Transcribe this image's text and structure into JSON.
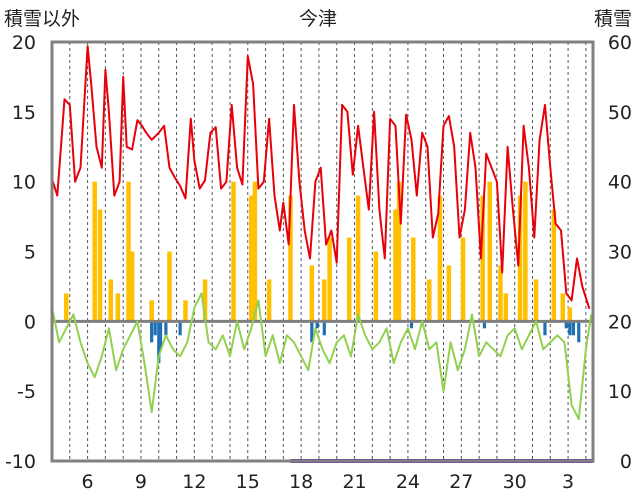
{
  "chart_data": {
    "type": "line",
    "title": "今津",
    "left_axis_label": "積雪以外",
    "right_axis_label": "積雪",
    "left_ylim": [
      -10,
      20
    ],
    "right_ylim": [
      0,
      60
    ],
    "left_ticks": [
      "20",
      "15",
      "10",
      "5",
      "0",
      "-5",
      "-10"
    ],
    "right_ticks": [
      "60",
      "50",
      "40",
      "30",
      "20",
      "10",
      "0"
    ],
    "x_tick_labels": [
      "6",
      "9",
      "12",
      "15",
      "18",
      "21",
      "24",
      "27",
      "30",
      "3"
    ],
    "grid": "vertical dashed daily lines",
    "x_range_days": [
      4,
      34.4
    ],
    "colors": {
      "max_temp": "#e8000b",
      "min_temp": "#92d050",
      "precip": "#ffc000",
      "negative_bars": "#1f6fb4",
      "snow_depth": "#7030a0",
      "zero_line": "#7f7f7f",
      "frame": "#808080"
    },
    "series": [
      {
        "key": "max_temp",
        "axis": "left",
        "x": [
          4.0,
          4.3,
          4.7,
          5.0,
          5.3,
          5.6,
          6.0,
          6.2,
          6.5,
          6.8,
          7.0,
          7.2,
          7.5,
          7.8,
          8.0,
          8.2,
          8.5,
          8.8,
          9.0,
          9.3,
          9.6,
          10.0,
          10.3,
          10.6,
          10.9,
          11.2,
          11.5,
          11.8,
          12.0,
          12.3,
          12.6,
          12.9,
          13.2,
          13.5,
          13.8,
          14.1,
          14.4,
          14.7,
          15.0,
          15.3,
          15.6,
          15.9,
          16.2,
          16.5,
          16.8,
          17.0,
          17.3,
          17.6,
          17.9,
          18.2,
          18.5,
          18.8,
          19.1,
          19.4,
          19.7,
          20.0,
          20.3,
          20.6,
          20.9,
          21.2,
          21.5,
          21.8,
          22.1,
          22.4,
          22.7,
          23.0,
          23.3,
          23.6,
          23.9,
          24.2,
          24.5,
          24.8,
          25.1,
          25.4,
          25.7,
          26.0,
          26.3,
          26.6,
          26.9,
          27.2,
          27.5,
          27.8,
          28.1,
          28.4,
          28.7,
          29.0,
          29.3,
          29.6,
          29.9,
          30.2,
          30.5,
          30.8,
          31.1,
          31.4,
          31.7,
          32.0,
          32.3,
          32.6,
          32.9,
          33.2,
          33.5,
          33.8,
          34.2
        ],
        "values": [
          10.2,
          9,
          15.9,
          15.5,
          10,
          11,
          19.7,
          17,
          12.5,
          11,
          18,
          15,
          9,
          10,
          17.5,
          12.5,
          12.3,
          14.4,
          14.1,
          13.5,
          13,
          13.5,
          14,
          11,
          10.3,
          9.7,
          8.8,
          14.5,
          11.5,
          9.5,
          10.1,
          13.5,
          13.9,
          9.5,
          10,
          15.5,
          11,
          9.8,
          19,
          17,
          9.5,
          10,
          14.5,
          9,
          6.5,
          8.5,
          5.5,
          15.5,
          10,
          6.5,
          4.5,
          10,
          11,
          5.5,
          6.5,
          4.2,
          15.5,
          15,
          10.5,
          14,
          11,
          8,
          15,
          8,
          4.5,
          14.5,
          14,
          7,
          14.8,
          13,
          9,
          13.5,
          12.5,
          6,
          7.7,
          14,
          14.7,
          12.5,
          6,
          8,
          13.5,
          11,
          4.5,
          12,
          11,
          10,
          3.5,
          12.5,
          8,
          4,
          14,
          11,
          6,
          13,
          15.5,
          11,
          7,
          6.5,
          2,
          1.5,
          4.5,
          2.5,
          0.9
        ]
      },
      {
        "key": "min_temp",
        "axis": "left",
        "x": [
          4.0,
          4.4,
          4.8,
          5.2,
          5.6,
          6.0,
          6.4,
          6.8,
          7.2,
          7.6,
          8.0,
          8.4,
          8.8,
          9.2,
          9.6,
          10.0,
          10.4,
          10.8,
          11.2,
          11.6,
          12.0,
          12.4,
          12.8,
          13.2,
          13.6,
          14.0,
          14.4,
          14.8,
          15.2,
          15.6,
          16.0,
          16.4,
          16.8,
          17.2,
          17.6,
          18.0,
          18.4,
          18.8,
          19.2,
          19.6,
          20.0,
          20.4,
          20.8,
          21.2,
          21.6,
          22.0,
          22.4,
          22.8,
          23.2,
          23.6,
          24.0,
          24.4,
          24.8,
          25.2,
          25.6,
          26.0,
          26.4,
          26.8,
          27.2,
          27.6,
          28.0,
          28.4,
          28.8,
          29.2,
          29.6,
          30.0,
          30.4,
          30.8,
          31.2,
          31.6,
          32.0,
          32.4,
          32.8,
          33.2,
          33.6,
          34.0,
          34.3
        ],
        "values": [
          1,
          -1.5,
          -0.5,
          0.5,
          -1.5,
          -3,
          -4,
          -2.5,
          -0.5,
          -3.5,
          -2,
          -1,
          0,
          -3,
          -6.5,
          -2.5,
          -1,
          -2,
          -2.5,
          -1.5,
          1,
          2,
          -1.5,
          -2,
          -1,
          -2.5,
          0,
          -2,
          -0.5,
          1.5,
          -2.5,
          -1,
          -3,
          -1,
          -1.5,
          -2.5,
          -3.5,
          -0.5,
          -2,
          -3,
          -1.5,
          -1,
          -2.5,
          0.5,
          -1,
          -2,
          -1.5,
          -0.5,
          -3,
          -1.5,
          -0.5,
          -2,
          0,
          -2,
          -1.5,
          -5,
          -1.5,
          -3.5,
          -2,
          0.5,
          -2.5,
          -1.5,
          -2,
          -2.5,
          -1,
          -0.5,
          -2,
          -1,
          0,
          -2,
          -1.5,
          -1,
          -1.5,
          -6,
          -7,
          -2,
          0.5
        ]
      },
      {
        "key": "precip",
        "axis": "left",
        "type": "bar",
        "x": [
          4.8,
          6.4,
          6.7,
          7.3,
          7.7,
          8.3,
          8.5,
          9.6,
          10.6,
          11.5,
          12.6,
          14.2,
          15.2,
          15.4,
          16.2,
          17.4,
          18.6,
          19.3,
          19.6,
          20.7,
          21.2,
          22.2,
          23.3,
          23.5,
          24.3,
          25.2,
          25.8,
          26.3,
          27.1,
          28.2,
          28.6,
          29.2,
          29.5,
          30.3,
          30.6,
          31.2,
          32.2,
          32.7,
          33.1
        ],
        "values": [
          2,
          10,
          8,
          3,
          2,
          10,
          5,
          1.5,
          5,
          1.5,
          3,
          10,
          9,
          10,
          3,
          9,
          4,
          3,
          6,
          6,
          9,
          5,
          8,
          10,
          6,
          3,
          9,
          4,
          6,
          9,
          10,
          4,
          2,
          9,
          10,
          3,
          8,
          2,
          1
        ]
      },
      {
        "key": "negative_bars",
        "axis": "left",
        "type": "bar",
        "x": [
          9.6,
          9.8,
          10.0,
          10.1,
          10.4,
          11.2,
          18.6,
          18.9,
          19.3,
          24.2,
          28.3,
          31.7,
          32.9,
          33.1,
          33.3,
          33.6
        ],
        "values": [
          -1.5,
          -1,
          -3,
          -2,
          -1,
          -1,
          -1.5,
          -0.5,
          -1,
          -0.5,
          -0.5,
          -1,
          -0.5,
          -1,
          -1,
          -1.5
        ]
      },
      {
        "key": "snow_depth",
        "axis": "right",
        "x": [
          17.4,
          34.4
        ],
        "values": [
          0,
          0
        ]
      }
    ]
  }
}
